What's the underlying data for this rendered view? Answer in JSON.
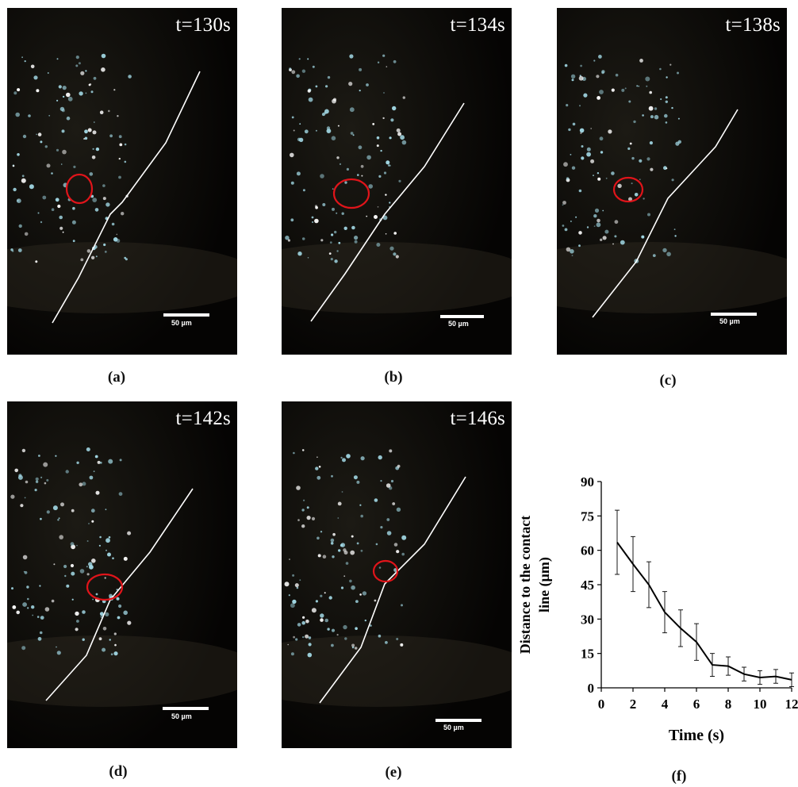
{
  "panels": [
    {
      "id": "a",
      "caption": "(a)",
      "time": "t=130s",
      "scale": "50 µm"
    },
    {
      "id": "b",
      "caption": "(b)",
      "time": "t=134s",
      "scale": "50 µm"
    },
    {
      "id": "c",
      "caption": "(c)",
      "time": "t=138s",
      "scale": "50 µm"
    },
    {
      "id": "d",
      "caption": "(d)",
      "time": "t=142s",
      "scale": "50 µm"
    },
    {
      "id": "e",
      "caption": "(e)",
      "time": "t=146s",
      "scale": "50 µm"
    }
  ],
  "plot_caption": "(f)",
  "chart_data": {
    "type": "line",
    "xlabel": "Time (s)",
    "ylabel": [
      "Distance to the contact",
      "line (µm)"
    ],
    "xlim": [
      0,
      12
    ],
    "ylim": [
      0,
      90
    ],
    "xticks": [
      0,
      2,
      4,
      6,
      8,
      10,
      12
    ],
    "yticks": [
      0,
      15,
      30,
      45,
      60,
      75,
      90
    ],
    "series": [
      {
        "x": [
          1,
          2,
          3,
          4,
          5,
          6,
          7,
          8,
          9,
          10,
          11,
          12
        ],
        "y": [
          63.5,
          54,
          45,
          33,
          26,
          20,
          10,
          9.5,
          6,
          4.5,
          5,
          3.5
        ],
        "err": [
          14,
          12,
          10,
          9,
          8,
          8,
          5,
          4,
          3,
          3,
          3,
          3
        ],
        "color": "#000000"
      }
    ]
  }
}
